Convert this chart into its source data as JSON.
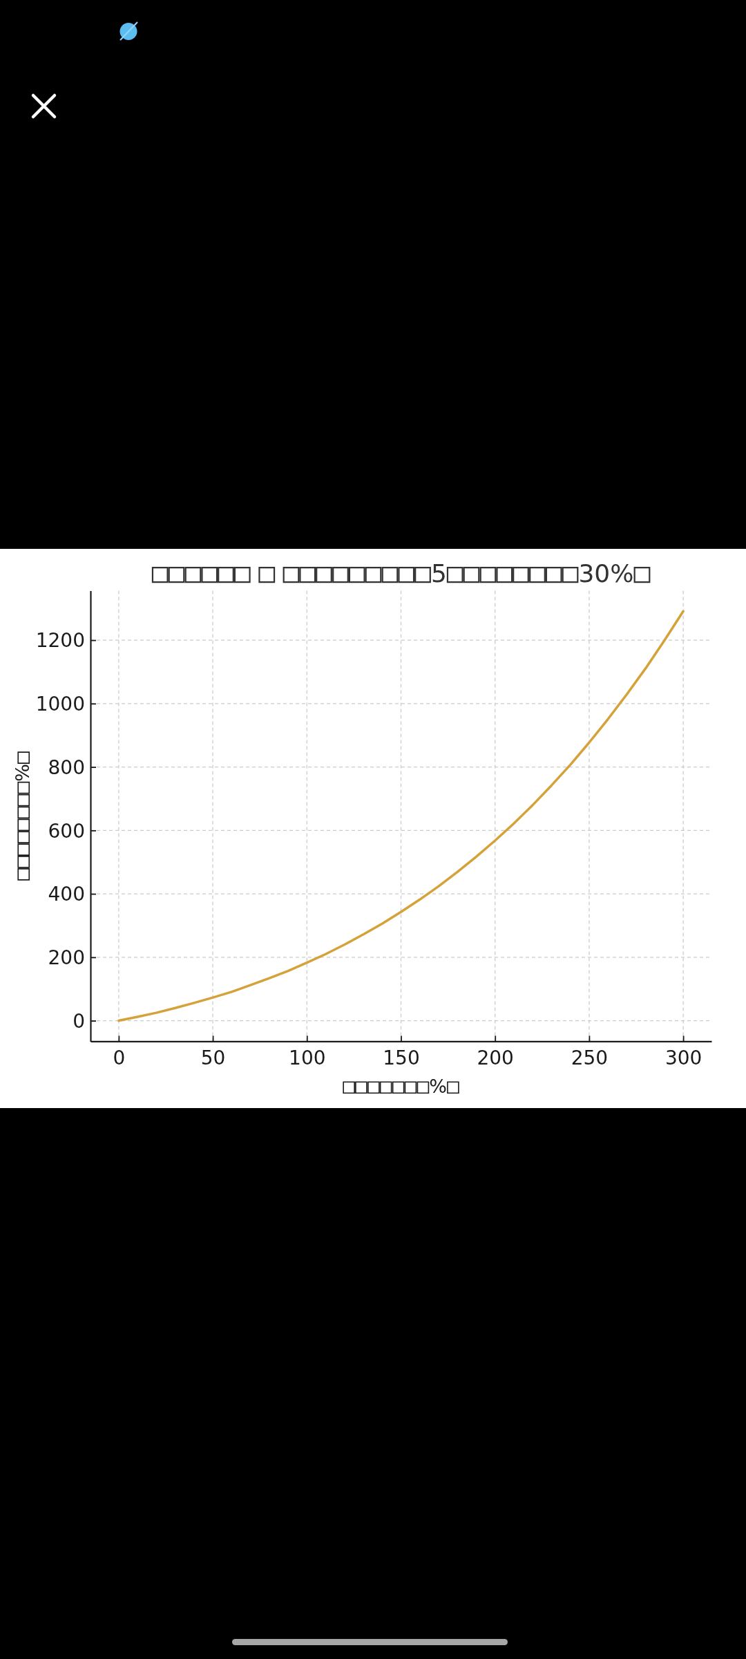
{
  "chart_data": {
    "type": "line",
    "title": "□□□□□□ □ □□□□□□□□□5□□□□□□□□30%□",
    "xlabel": "□□□□□□□%□",
    "ylabel": "□□□□□□□□%□",
    "x": [
      0,
      10,
      20,
      30,
      40,
      50,
      60,
      70,
      80,
      90,
      100,
      110,
      120,
      130,
      140,
      150,
      160,
      170,
      180,
      190,
      200,
      210,
      220,
      230,
      240,
      250,
      260,
      270,
      280,
      290,
      300
    ],
    "series": [
      {
        "color": "#d4a239",
        "values": [
          0,
          12,
          25,
          40,
          56,
          73,
          91,
          112,
          134,
          157,
          183,
          210,
          240,
          272,
          306,
          343,
          382,
          424,
          469,
          517,
          568,
          622,
          680,
          742,
          807,
          877,
          951,
          1029,
          1111,
          1199,
          1291
        ]
      }
    ],
    "xlim": [
      -15,
      315
    ],
    "ylim": [
      -65,
      1356
    ],
    "xticks": [
      0,
      50,
      100,
      150,
      200,
      250,
      300
    ],
    "yticks": [
      0,
      200,
      400,
      600,
      800,
      1000,
      1200
    ],
    "grid": true
  }
}
